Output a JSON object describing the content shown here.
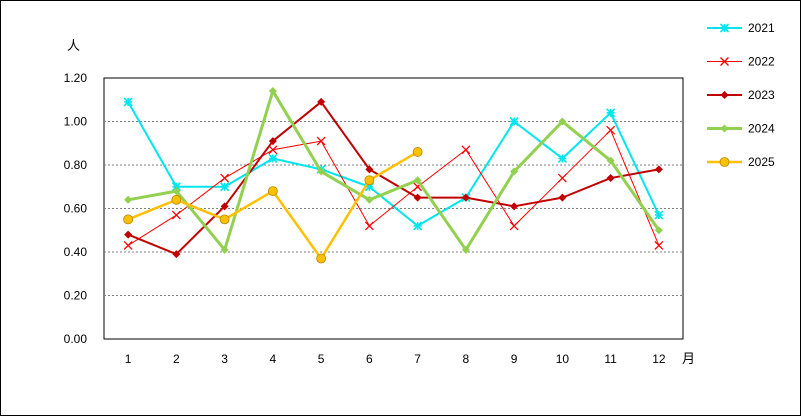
{
  "chart_data": {
    "type": "line",
    "ylabel": "人",
    "xlabel": "月",
    "ylim": [
      0,
      1.2
    ],
    "y_ticks": [
      "0.00",
      "0.20",
      "0.40",
      "0.60",
      "0.80",
      "1.00",
      "1.20"
    ],
    "categories": [
      "1",
      "2",
      "3",
      "4",
      "5",
      "6",
      "7",
      "8",
      "9",
      "10",
      "11",
      "12"
    ],
    "grid": "horizontal dashed",
    "legend_position": "right",
    "series": [
      {
        "name": "2021",
        "color": "#00e5ee",
        "marker": "asterisk",
        "values": [
          1.09,
          0.7,
          0.7,
          0.83,
          0.78,
          0.7,
          0.52,
          0.65,
          1.0,
          0.83,
          1.04,
          0.57
        ]
      },
      {
        "name": "2022",
        "color": "#ff0000",
        "marker": "x",
        "values": [
          0.43,
          0.57,
          0.74,
          0.87,
          0.91,
          0.52,
          0.7,
          0.87,
          0.52,
          0.74,
          0.96,
          0.43
        ]
      },
      {
        "name": "2023",
        "color": "#c00000",
        "marker": "diamond",
        "values": [
          0.48,
          0.39,
          0.61,
          0.91,
          1.09,
          0.78,
          0.65,
          0.65,
          0.61,
          0.65,
          0.74,
          0.78
        ]
      },
      {
        "name": "2024",
        "color": "#92d050",
        "marker": "diamond",
        "values": [
          0.64,
          0.68,
          0.41,
          1.14,
          0.77,
          0.64,
          0.73,
          0.41,
          0.77,
          1.0,
          0.82,
          0.5
        ]
      },
      {
        "name": "2025",
        "color": "#ffc000",
        "marker": "circle",
        "values": [
          0.55,
          0.64,
          0.55,
          0.68,
          0.37,
          0.73,
          0.86,
          null,
          null,
          null,
          null,
          null
        ]
      }
    ]
  }
}
